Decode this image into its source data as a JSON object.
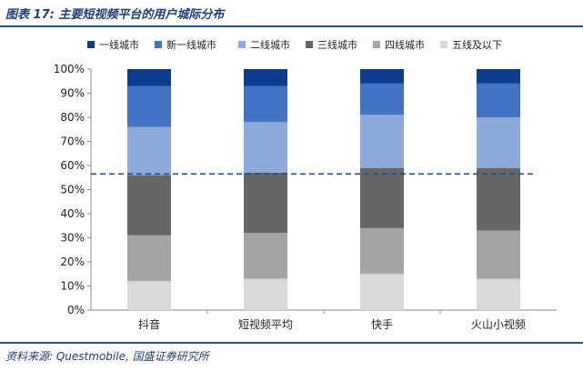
{
  "figure": {
    "title": "图表 17: 主要短视频平台的用户城际分布",
    "source": "资料来源: Questmobile, 国盛证券研究所"
  },
  "chart_data": {
    "type": "bar",
    "stacked": true,
    "percent": true,
    "categories": [
      "抖音",
      "短视频平均",
      "快手",
      "火山小视频"
    ],
    "series": [
      {
        "name": "一线城市",
        "color": "#0d3c8f",
        "values": [
          7,
          7,
          6,
          6
        ]
      },
      {
        "name": "新一线城市",
        "color": "#4472c4",
        "values": [
          17,
          15,
          13,
          14
        ]
      },
      {
        "name": "二线城市",
        "color": "#8eaadb",
        "values": [
          20,
          21,
          22,
          21
        ]
      },
      {
        "name": "三线城市",
        "color": "#666666",
        "values": [
          25,
          25,
          25,
          26
        ]
      },
      {
        "name": "四线城市",
        "color": "#a5a5a5",
        "values": [
          19,
          19,
          19,
          20
        ]
      },
      {
        "name": "五线及以下",
        "color": "#d9d9d9",
        "values": [
          12,
          13,
          15,
          13
        ]
      }
    ],
    "yticks": [
      "0%",
      "10%",
      "20%",
      "30%",
      "40%",
      "50%",
      "60%",
      "70%",
      "80%",
      "90%",
      "100%"
    ],
    "ylim": [
      0,
      100
    ],
    "reference_line": {
      "value": 56.5,
      "style": "dashed",
      "color": "#1f4e8c"
    },
    "legend_position": "top",
    "grid": false
  }
}
